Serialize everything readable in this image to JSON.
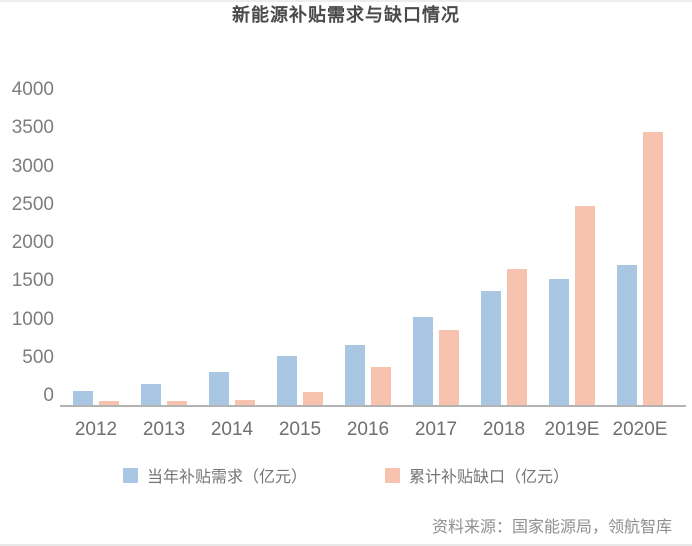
{
  "page": {
    "title": "新能源补贴需求与缺口情况",
    "source": "资料来源：国家能源局，领航智库"
  },
  "chart_data": {
    "type": "bar",
    "title": "新能源补贴需求与缺口情况",
    "categories": [
      "2012",
      "2013",
      "2014",
      "2015",
      "2016",
      "2017",
      "2018",
      "2019E",
      "2020E"
    ],
    "series": [
      {
        "name": "当年补贴需求（亿元）",
        "color": "#A9C7E3",
        "values": [
          200,
          290,
          450,
          660,
          800,
          1170,
          1500,
          1660,
          1840
        ]
      },
      {
        "name": "累计补贴缺口（亿元）",
        "color": "#F8C3AE",
        "values": [
          60,
          70,
          80,
          185,
          510,
          1000,
          1790,
          2615,
          3580
        ]
      }
    ],
    "xlabel": "",
    "ylabel": "",
    "ylim": [
      0,
      4000
    ],
    "yticks": [
      0,
      500,
      1000,
      1500,
      2000,
      2500,
      3000,
      3500,
      4000
    ],
    "grid": false,
    "legend_position": "bottom",
    "source": "资料来源：国家能源局，领航智库",
    "colors": {
      "series_annual_demand": "#A9C7E3",
      "series_cumulative_gap": "#F8C3AE",
      "axis_line": "#b3b3b3",
      "tick_text": "#7d7d7d",
      "title_text": "#4a4a4a"
    }
  }
}
